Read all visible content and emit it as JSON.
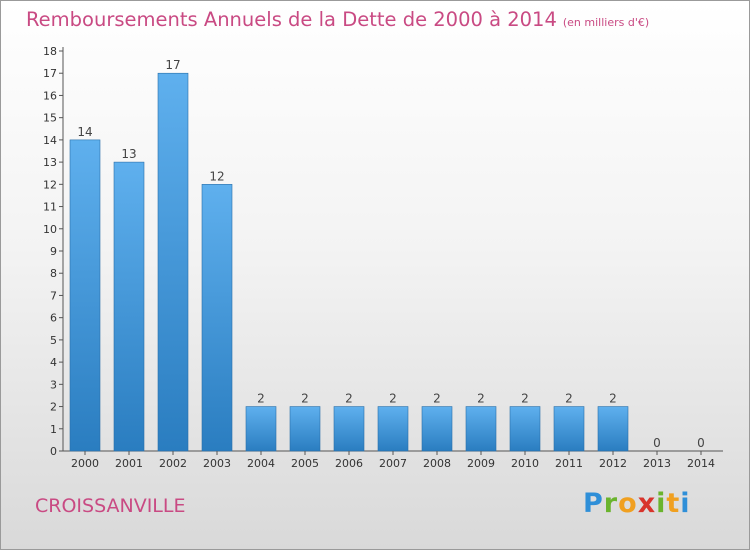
{
  "chart_data": {
    "type": "bar",
    "title": "Remboursements Annuels de la Dette de 2000 à 2014",
    "unit_note": "(en milliers d'€)",
    "categories": [
      "2000",
      "2001",
      "2002",
      "2003",
      "2004",
      "2005",
      "2006",
      "2007",
      "2008",
      "2009",
      "2010",
      "2011",
      "2012",
      "2013",
      "2014"
    ],
    "values": [
      14,
      13,
      17,
      12,
      2,
      2,
      2,
      2,
      2,
      2,
      2,
      2,
      2,
      0,
      0
    ],
    "data_labels": [
      "14",
      "13",
      "17",
      "12",
      "2",
      "2",
      "2",
      "2",
      "2",
      "2",
      "2",
      "2",
      "2",
      "0",
      "0"
    ],
    "ylim": [
      0,
      18
    ],
    "yticks": [
      "0",
      "1",
      "2",
      "3",
      "4",
      "5",
      "6",
      "7",
      "8",
      "9",
      "10",
      "11",
      "12",
      "13",
      "14",
      "15",
      "16",
      "17",
      "18"
    ],
    "bar_color": "#3b92d6",
    "grid": false
  },
  "footer": {
    "city": "CROISSANVILLE",
    "logo_letters": [
      "P",
      "r",
      "o",
      "x",
      "i",
      "t",
      "i"
    ],
    "logo_colors": [
      "#2f8fd8",
      "#6ab42d",
      "#f0a020",
      "#d8342c",
      "#6ab42d",
      "#f0a020",
      "#2f8fd8"
    ]
  }
}
